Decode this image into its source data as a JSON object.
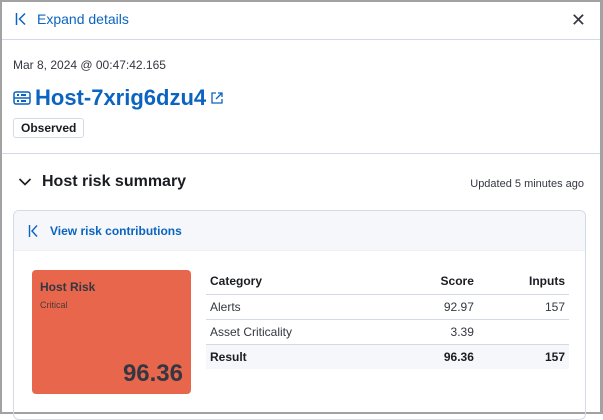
{
  "header": {
    "expand_label": "Expand details",
    "close_icon": "close-icon"
  },
  "entity": {
    "timestamp": "Mar 8, 2024 @ 00:47:42.165",
    "name": "Host-7xrig6dzu4",
    "badge": "Observed"
  },
  "risk_summary": {
    "title": "Host risk summary",
    "updated": "Updated 5 minutes ago",
    "contributions_link": "View risk contributions",
    "panel": {
      "title": "Host Risk",
      "level": "Critical",
      "score": "96.36",
      "color": "#e7664c"
    },
    "table": {
      "headers": [
        "Category",
        "Score",
        "Inputs"
      ],
      "rows": [
        [
          "Alerts",
          "92.97",
          "157"
        ],
        [
          "Asset Criticality",
          "3.39",
          ""
        ]
      ],
      "result": [
        "Result",
        "96.36",
        "157"
      ]
    }
  }
}
